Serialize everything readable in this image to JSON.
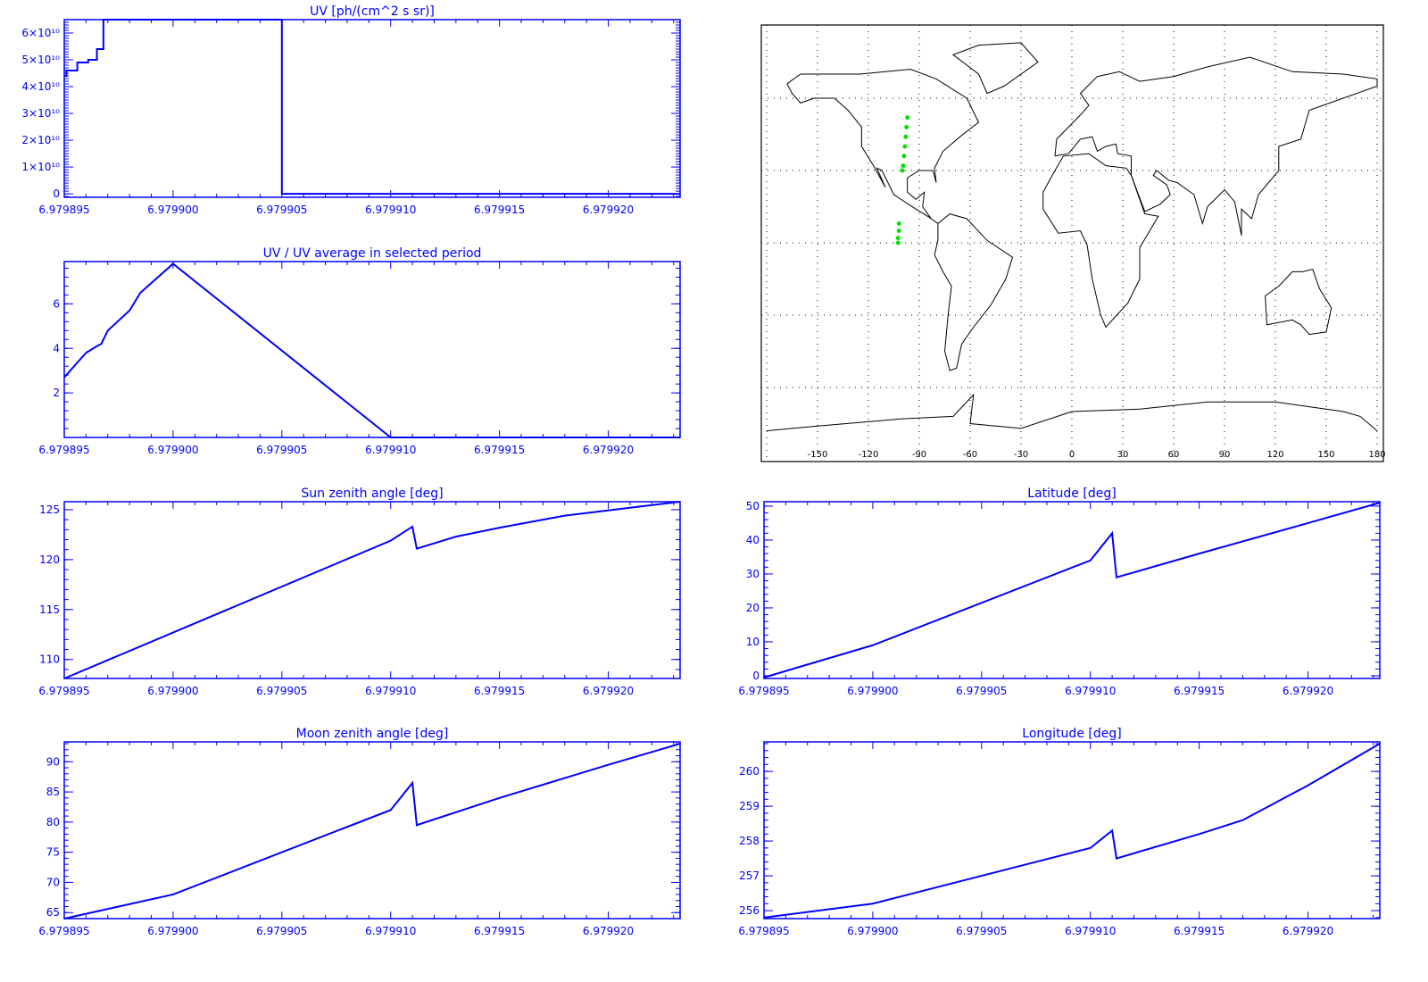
{
  "colors": {
    "axes": "#0000ff",
    "series": "#0000ff",
    "map_track": "#00e000",
    "map_coast": "#000000"
  },
  "chart_data": [
    {
      "id": "uv",
      "type": "line",
      "title": "UV [ph/(cm^2 s sr)]",
      "xlim": [
        6.979895,
        6.9799233
      ],
      "ylim": [
        -1300000000.0,
        65000000000.0
      ],
      "xticks": [
        "6.979895",
        "6.979900",
        "6.979905",
        "6.979910",
        "6.979915",
        "6.979920"
      ],
      "yticks": [
        {
          "v": 0,
          "label": "0"
        },
        {
          "v": 10000000000.0,
          "label": "1×10¹⁰"
        },
        {
          "v": 20000000000.0,
          "label": "2×10¹⁰"
        },
        {
          "v": 30000000000.0,
          "label": "3×10¹⁰"
        },
        {
          "v": 40000000000.0,
          "label": "4×10¹⁰"
        },
        {
          "v": 50000000000.0,
          "label": "5×10¹⁰"
        },
        {
          "v": 60000000000.0,
          "label": "6×10¹⁰"
        }
      ],
      "step": true,
      "x": [
        6.979895,
        6.9798951,
        6.9798954,
        6.9798956,
        6.9798958,
        6.9798961,
        6.9798965,
        6.9798968,
        6.979905,
        6.979905,
        6.9799233
      ],
      "y": [
        44000000000.0,
        46000000000.0,
        46000000000.0,
        49000000000.0,
        49000000000.0,
        50000000000.0,
        54000000000.0,
        65000000000.0,
        65000000000.0,
        0,
        0
      ]
    },
    {
      "id": "uv-ratio",
      "type": "line",
      "title": "UV / UV average in selected period",
      "xlim": [
        6.979895,
        6.9799233
      ],
      "ylim": [
        0,
        7.9
      ],
      "xticks": [
        "6.979895",
        "6.979900",
        "6.979905",
        "6.979910",
        "6.979915",
        "6.979920"
      ],
      "yticks": [
        {
          "v": 2,
          "label": "2"
        },
        {
          "v": 4,
          "label": "4"
        },
        {
          "v": 6,
          "label": "6"
        }
      ],
      "x": [
        6.979895,
        6.979896,
        6.9798965,
        6.9798967,
        6.979897,
        6.979898,
        6.9798985,
        6.9799,
        6.97991,
        6.9799233
      ],
      "y": [
        2.7,
        3.8,
        4.1,
        4.2,
        4.8,
        5.7,
        6.5,
        7.8,
        0,
        0
      ]
    },
    {
      "id": "sun",
      "type": "line",
      "title": "Sun zenith angle [deg]",
      "xlim": [
        6.979895,
        6.9799233
      ],
      "ylim": [
        108.1,
        125.8
      ],
      "xticks": [
        "6.979895",
        "6.979900",
        "6.979905",
        "6.979910",
        "6.979915",
        "6.979920"
      ],
      "yticks": [
        {
          "v": 110,
          "label": "110"
        },
        {
          "v": 115,
          "label": "115"
        },
        {
          "v": 120,
          "label": "120"
        },
        {
          "v": 125,
          "label": "125"
        }
      ],
      "x": [
        6.979895,
        6.9799,
        6.97991,
        6.979911,
        6.9799112,
        6.979913,
        6.979915,
        6.979918,
        6.979921,
        6.9799233
      ],
      "y": [
        108.1,
        112.7,
        121.9,
        123.3,
        121.1,
        122.3,
        123.2,
        124.4,
        125.2,
        125.8
      ]
    },
    {
      "id": "latitude",
      "type": "line",
      "title": "Latitude [deg]",
      "xlim": [
        6.979895,
        6.9799233
      ],
      "ylim": [
        -0.8,
        51.3
      ],
      "xticks": [
        "6.979895",
        "6.979900",
        "6.979905",
        "6.979910",
        "6.979915",
        "6.979920"
      ],
      "yticks": [
        {
          "v": 0,
          "label": "0"
        },
        {
          "v": 10,
          "label": "10"
        },
        {
          "v": 20,
          "label": "20"
        },
        {
          "v": 30,
          "label": "30"
        },
        {
          "v": 40,
          "label": "40"
        },
        {
          "v": 50,
          "label": "50"
        }
      ],
      "x": [
        6.979895,
        6.9799,
        6.97991,
        6.979911,
        6.9799112,
        6.979915,
        6.97992,
        6.9799233
      ],
      "y": [
        -0.5,
        9,
        34,
        42,
        29,
        36,
        45,
        51
      ]
    },
    {
      "id": "moon",
      "type": "line",
      "title": "Moon zenith angle [deg]",
      "xlim": [
        6.979895,
        6.9799233
      ],
      "ylim": [
        64,
        93.3
      ],
      "xticks": [
        "6.979895",
        "6.979900",
        "6.979905",
        "6.979910",
        "6.979915",
        "6.979920"
      ],
      "yticks": [
        {
          "v": 65,
          "label": "65"
        },
        {
          "v": 70,
          "label": "70"
        },
        {
          "v": 75,
          "label": "75"
        },
        {
          "v": 80,
          "label": "80"
        },
        {
          "v": 85,
          "label": "85"
        },
        {
          "v": 90,
          "label": "90"
        }
      ],
      "x": [
        6.979895,
        6.9799,
        6.97991,
        6.979911,
        6.9799112,
        6.979915,
        6.97992,
        6.9799233
      ],
      "y": [
        64,
        68,
        82,
        86.5,
        79.5,
        84,
        89.5,
        93
      ]
    },
    {
      "id": "longitude",
      "type": "line",
      "title": "Longitude [deg]",
      "xlim": [
        6.979895,
        6.9799233
      ],
      "ylim": [
        255.77,
        260.85
      ],
      "xticks": [
        "6.979895",
        "6.979900",
        "6.979905",
        "6.979910",
        "6.979915",
        "6.979920"
      ],
      "yticks": [
        {
          "v": 256,
          "label": "256"
        },
        {
          "v": 257,
          "label": "257"
        },
        {
          "v": 258,
          "label": "258"
        },
        {
          "v": 259,
          "label": "259"
        },
        {
          "v": 260,
          "label": "260"
        }
      ],
      "x": [
        6.979895,
        6.9799,
        6.97991,
        6.979911,
        6.9799112,
        6.979915,
        6.979917,
        6.97992,
        6.9799233
      ],
      "y": [
        255.8,
        256.2,
        257.8,
        258.3,
        257.5,
        258.2,
        258.6,
        259.6,
        260.8
      ]
    }
  ],
  "map": {
    "lon_ticks": [
      "-150",
      "-120",
      "-90",
      "-60",
      "-30",
      "0",
      "30",
      "60",
      "90",
      "120",
      "150",
      "180"
    ],
    "track": [
      [
        -97,
        52
      ],
      [
        -97.5,
        48
      ],
      [
        -98,
        44
      ],
      [
        -98.5,
        40
      ],
      [
        -99,
        36
      ],
      [
        -99.5,
        32
      ],
      [
        -100,
        30
      ],
      [
        -102,
        8
      ],
      [
        -102,
        5
      ],
      [
        -102.5,
        2
      ],
      [
        -102.5,
        0
      ]
    ]
  }
}
